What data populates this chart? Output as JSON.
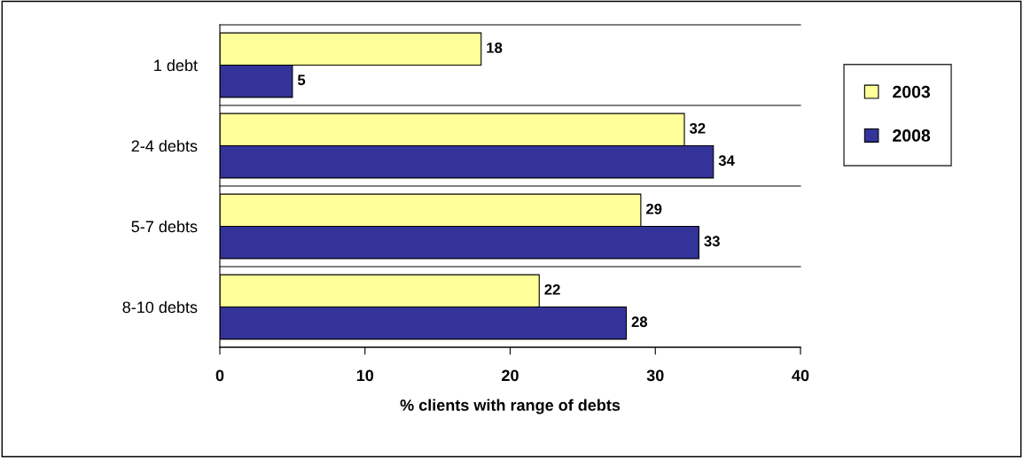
{
  "chart_data": {
    "type": "bar",
    "orientation": "horizontal",
    "xlabel": "% clients with range of debts",
    "categories": [
      "1 debt",
      "2-4 debts",
      "5-7 debts",
      "8-10 debts"
    ],
    "series": [
      {
        "name": "2003",
        "color": "#ffff99",
        "values": [
          18,
          32,
          29,
          22
        ]
      },
      {
        "name": "2008",
        "color": "#333399",
        "values": [
          5,
          34,
          33,
          28
        ]
      }
    ],
    "xlim": [
      0,
      40
    ],
    "xticks": [
      0,
      10,
      20,
      30,
      40
    ],
    "grid": "y",
    "legend": "right",
    "data_labels": true
  }
}
